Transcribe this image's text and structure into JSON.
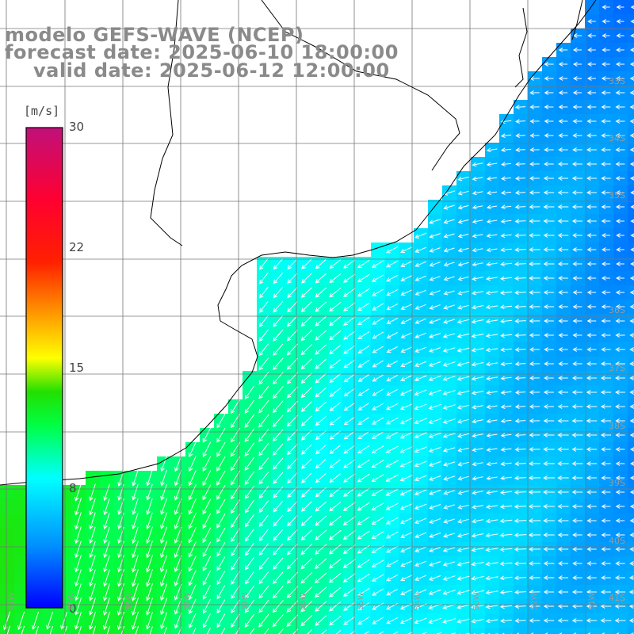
{
  "title": {
    "model": "modelo GEFS-WAVE (NCEP)",
    "forecast": "forecast date: 2025-06-10 18:00:00",
    "valid": "valid date: 2025-06-12 12:00:00"
  },
  "colorbar": {
    "unit": "[m/s]",
    "ticks": [
      {
        "label": "30",
        "value": 30
      },
      {
        "label": "22",
        "value": 22
      },
      {
        "label": "15",
        "value": 15
      },
      {
        "label": "8",
        "value": 8
      },
      {
        "label": "0",
        "value": 0
      }
    ],
    "min": 0,
    "max": 30,
    "colors": [
      "#0000ff",
      "#00b4ff",
      "#00ffff",
      "#00ff66",
      "#00e000",
      "#aaff00",
      "#ffff00",
      "#ff9900",
      "#ff2200",
      "#ff0000",
      "#e0007a",
      "#c0107a"
    ]
  },
  "grid": {
    "latitudes": [
      "33S",
      "34S",
      "35S",
      "36S",
      "37S",
      "38S",
      "39S",
      "40S",
      "41S"
    ],
    "longitudes": [
      "61W",
      "60W",
      "59W",
      "58W",
      "57W",
      "56W",
      "55W",
      "54W",
      "53W",
      "52W",
      "51W"
    ]
  },
  "colors": {
    "land": "#ffffff",
    "coast": "#000000",
    "grid": "#777777",
    "arrow": "#ffffff",
    "title": "#8a8a8a"
  },
  "wind_field": {
    "description_units": "m/s",
    "west_speed": 12,
    "east_speed": 4,
    "direction": "from northeast in west, from east in east"
  }
}
